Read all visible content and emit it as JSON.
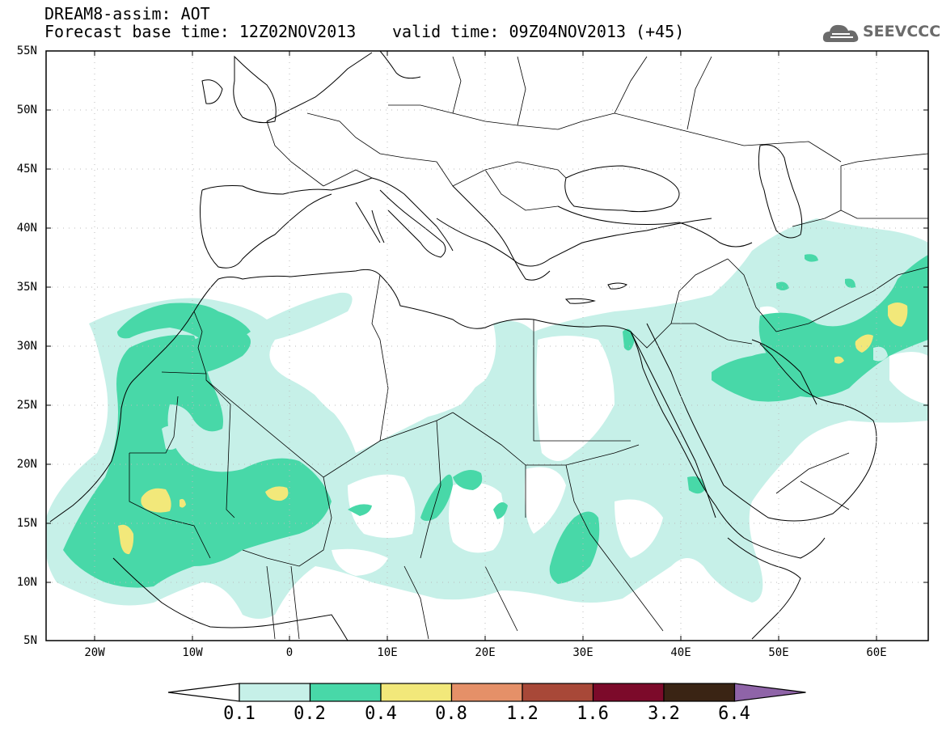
{
  "title": {
    "line1": "DREAM8-assim: AOT",
    "line2": "Forecast base time: 12Z02NOV2013",
    "valid": "valid time: 09Z04NOV2013 (+45)"
  },
  "logo": {
    "text": "SEEVCCC",
    "icon": "cloud-icon"
  },
  "axes": {
    "lat_labels": [
      "55N",
      "50N",
      "45N",
      "40N",
      "35N",
      "30N",
      "25N",
      "20N",
      "15N",
      "10N",
      "5N"
    ],
    "lon_labels": [
      "20W",
      "10W",
      "0",
      "10E",
      "20E",
      "30E",
      "40E",
      "50E",
      "60E"
    ]
  },
  "colorbar": {
    "labels": [
      "0.1",
      "0.2",
      "0.4",
      "0.8",
      "1.2",
      "1.6",
      "3.2",
      "6.4"
    ],
    "colors": [
      "#ffffff",
      "#c6f0e8",
      "#48d8a8",
      "#f2e87a",
      "#e59068",
      "#a84838",
      "#7c0a2a",
      "#3a2414",
      "#8f64a8"
    ]
  },
  "colors": {
    "aot_0_1": "#c6f0e8",
    "aot_0_2": "#48d8a8",
    "aot_0_4": "#f2e87a"
  }
}
